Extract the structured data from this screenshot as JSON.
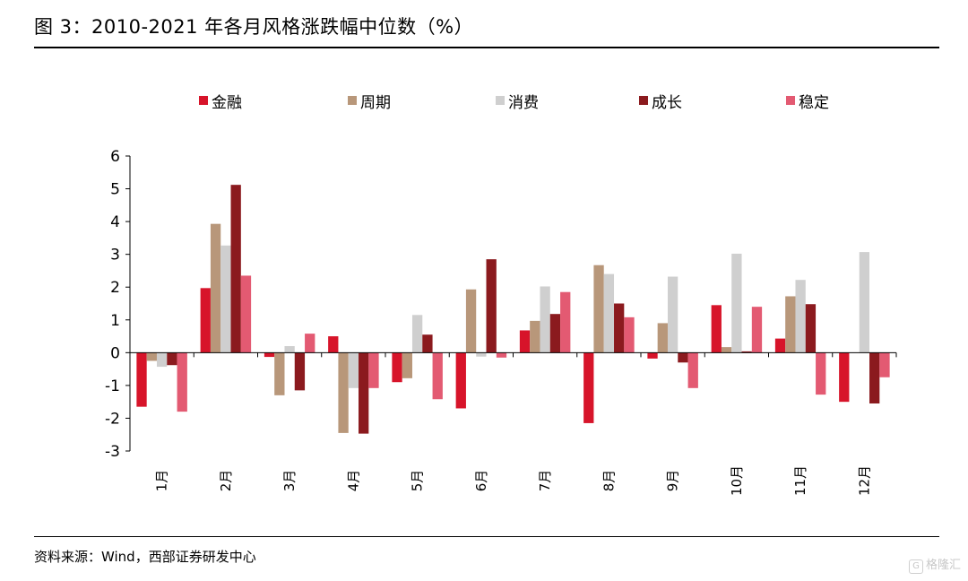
{
  "header": {
    "title": "图 3：2010-2021 年各月风格涨跌幅中位数（%）"
  },
  "footer": {
    "source": "资料来源：Wind，西部证券研发中心"
  },
  "watermark": {
    "icon_text": "G",
    "text": "格隆汇"
  },
  "chart_data": {
    "type": "bar",
    "categories": [
      "1月",
      "2月",
      "3月",
      "4月",
      "5月",
      "6月",
      "7月",
      "8月",
      "9月",
      "10月",
      "11月",
      "12月"
    ],
    "series": [
      {
        "name": "金融",
        "color": "#d7142a",
        "values": [
          -1.65,
          1.97,
          -0.13,
          0.5,
          -0.9,
          -1.7,
          0.68,
          -2.15,
          -0.18,
          1.45,
          0.43,
          -1.5
        ]
      },
      {
        "name": "周期",
        "color": "#b8977a",
        "values": [
          -0.25,
          3.93,
          -1.3,
          -2.45,
          -0.78,
          1.93,
          0.97,
          2.67,
          0.9,
          0.17,
          1.72,
          0.0
        ]
      },
      {
        "name": "消费",
        "color": "#cfcfcf",
        "values": [
          -0.43,
          3.27,
          0.2,
          -1.08,
          1.15,
          -0.12,
          2.02,
          2.4,
          2.32,
          3.02,
          2.22,
          3.07
        ]
      },
      {
        "name": "成长",
        "color": "#8b1a1e",
        "values": [
          -0.38,
          5.12,
          -1.15,
          -2.47,
          0.55,
          2.85,
          1.18,
          1.5,
          -0.3,
          0.04,
          1.48,
          -1.55
        ]
      },
      {
        "name": "稳定",
        "color": "#e35a72",
        "values": [
          -1.8,
          2.35,
          0.58,
          -1.08,
          -1.42,
          -0.15,
          1.85,
          1.08,
          -1.08,
          1.4,
          -1.28,
          -0.75
        ]
      }
    ],
    "ylim": [
      -3,
      6
    ],
    "yticks": [
      -3,
      -2,
      -1,
      0,
      1,
      2,
      3,
      4,
      5,
      6
    ],
    "legend_position": "top",
    "grid": false
  }
}
